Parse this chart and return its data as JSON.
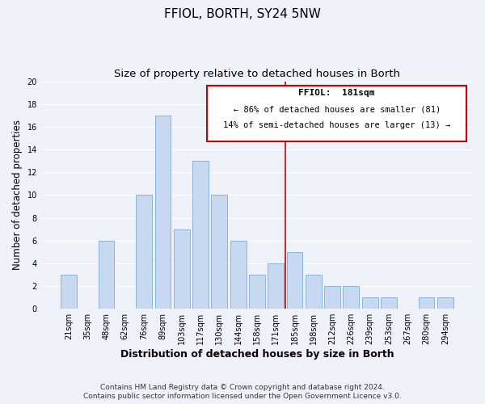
{
  "title": "FFIOL, BORTH, SY24 5NW",
  "subtitle": "Size of property relative to detached houses in Borth",
  "xlabel": "Distribution of detached houses by size in Borth",
  "ylabel": "Number of detached properties",
  "bar_labels": [
    "21sqm",
    "35sqm",
    "48sqm",
    "62sqm",
    "76sqm",
    "89sqm",
    "103sqm",
    "117sqm",
    "130sqm",
    "144sqm",
    "158sqm",
    "171sqm",
    "185sqm",
    "198sqm",
    "212sqm",
    "226sqm",
    "239sqm",
    "253sqm",
    "267sqm",
    "280sqm",
    "294sqm"
  ],
  "bar_values": [
    3,
    0,
    6,
    0,
    10,
    17,
    7,
    13,
    10,
    6,
    3,
    4,
    5,
    3,
    2,
    2,
    1,
    1,
    0,
    1,
    1
  ],
  "bar_color": "#c6d9f0",
  "bar_edgecolor": "#7bafd4",
  "vline_x_index": 12,
  "vline_color": "#cc0000",
  "ylim": [
    0,
    20
  ],
  "yticks": [
    0,
    2,
    4,
    6,
    8,
    10,
    12,
    14,
    16,
    18,
    20
  ],
  "annotation_title": "FFIOL:  181sqm",
  "annotation_line1": "← 86% of detached houses are smaller (81)",
  "annotation_line2": "14% of semi-detached houses are larger (13) →",
  "annotation_box_color": "#ffffff",
  "annotation_box_edgecolor": "#cc0000",
  "footer_line1": "Contains HM Land Registry data © Crown copyright and database right 2024.",
  "footer_line2": "Contains public sector information licensed under the Open Government Licence v3.0.",
  "background_color": "#eef2f8",
  "grid_color": "#ffffff",
  "title_fontsize": 11,
  "subtitle_fontsize": 9.5,
  "xlabel_fontsize": 9,
  "ylabel_fontsize": 8.5,
  "tick_fontsize": 7,
  "annotation_title_fontsize": 8,
  "annotation_text_fontsize": 7.5,
  "footer_fontsize": 6.5
}
